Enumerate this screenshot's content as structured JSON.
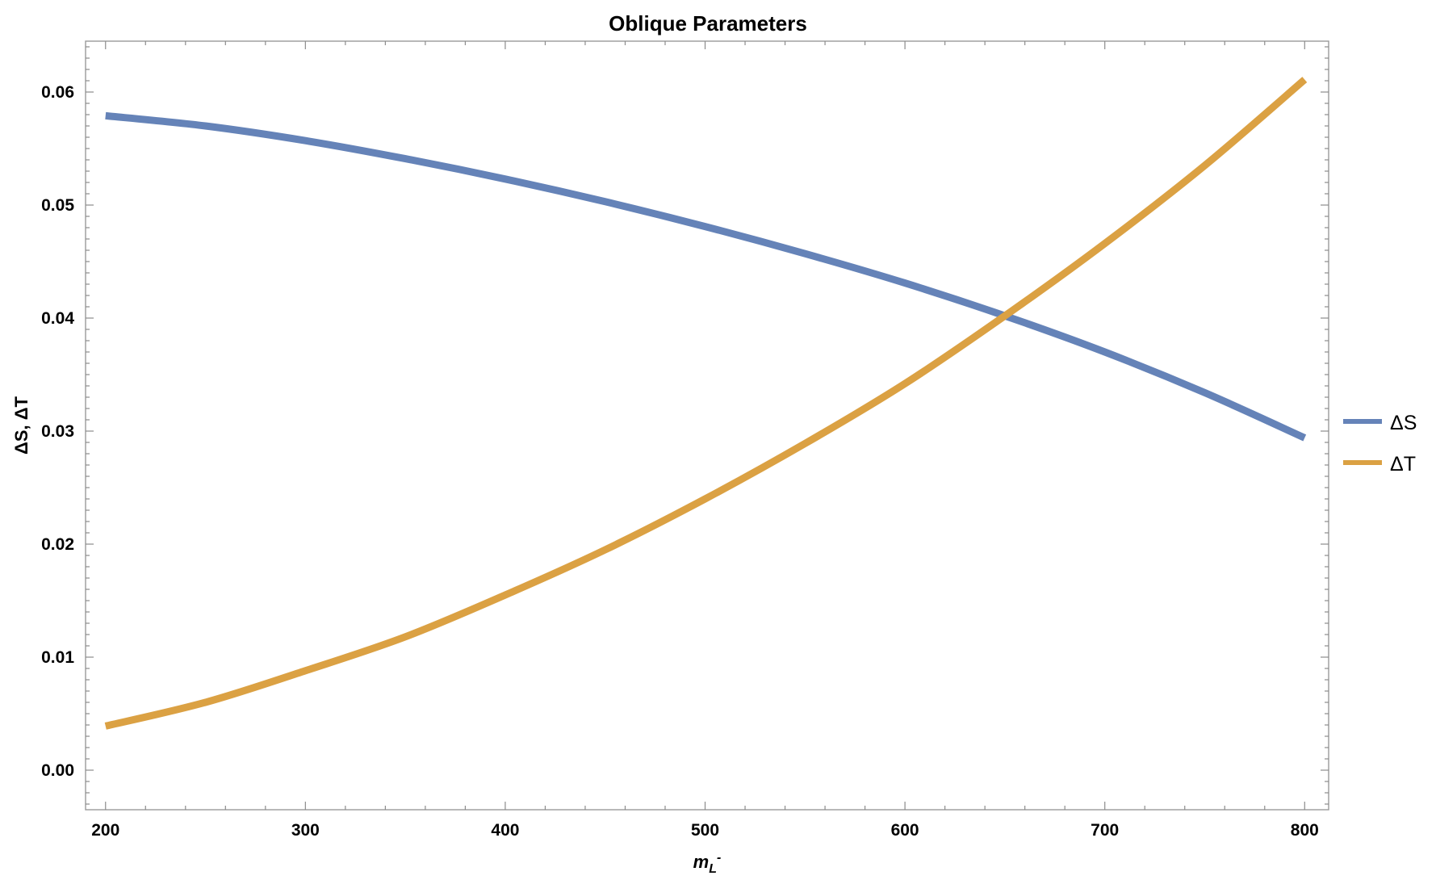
{
  "chart_data": {
    "type": "line",
    "title": "Oblique Parameters",
    "xlabel": "",
    "ylabel": "ΔS, ΔT",
    "xlim": [
      190,
      812
    ],
    "ylim": [
      -0.0035,
      0.0645
    ],
    "x_ticks": [
      200,
      300,
      400,
      500,
      600,
      700,
      800
    ],
    "x_tick_labels": [
      "200",
      "300",
      "400",
      "500",
      "600",
      "700",
      "800"
    ],
    "y_ticks": [
      0.0,
      0.01,
      0.02,
      0.03,
      0.04,
      0.05,
      0.06
    ],
    "y_tick_labels": [
      "0.00",
      "0.01",
      "0.02",
      "0.03",
      "0.04",
      "0.05",
      "0.06"
    ],
    "grid": false,
    "legend_position": "right",
    "series": [
      {
        "name": "ΔS",
        "color": "#6583b8",
        "x": [
          200,
          250,
          300,
          350,
          400,
          450,
          500,
          550,
          600,
          650,
          700,
          750,
          800
        ],
        "y": [
          0.0579,
          0.057,
          0.0557,
          0.0541,
          0.0523,
          0.0503,
          0.0481,
          0.0457,
          0.0431,
          0.0402,
          0.037,
          0.0334,
          0.0294
        ]
      },
      {
        "name": "ΔT",
        "color": "#dba143",
        "x": [
          200,
          250,
          300,
          350,
          400,
          450,
          500,
          550,
          600,
          650,
          700,
          750,
          800
        ],
        "y": [
          0.0039,
          0.006,
          0.0088,
          0.0118,
          0.0155,
          0.0195,
          0.024,
          0.0289,
          0.0342,
          0.0402,
          0.0466,
          0.0535,
          0.0611
        ]
      }
    ]
  }
}
